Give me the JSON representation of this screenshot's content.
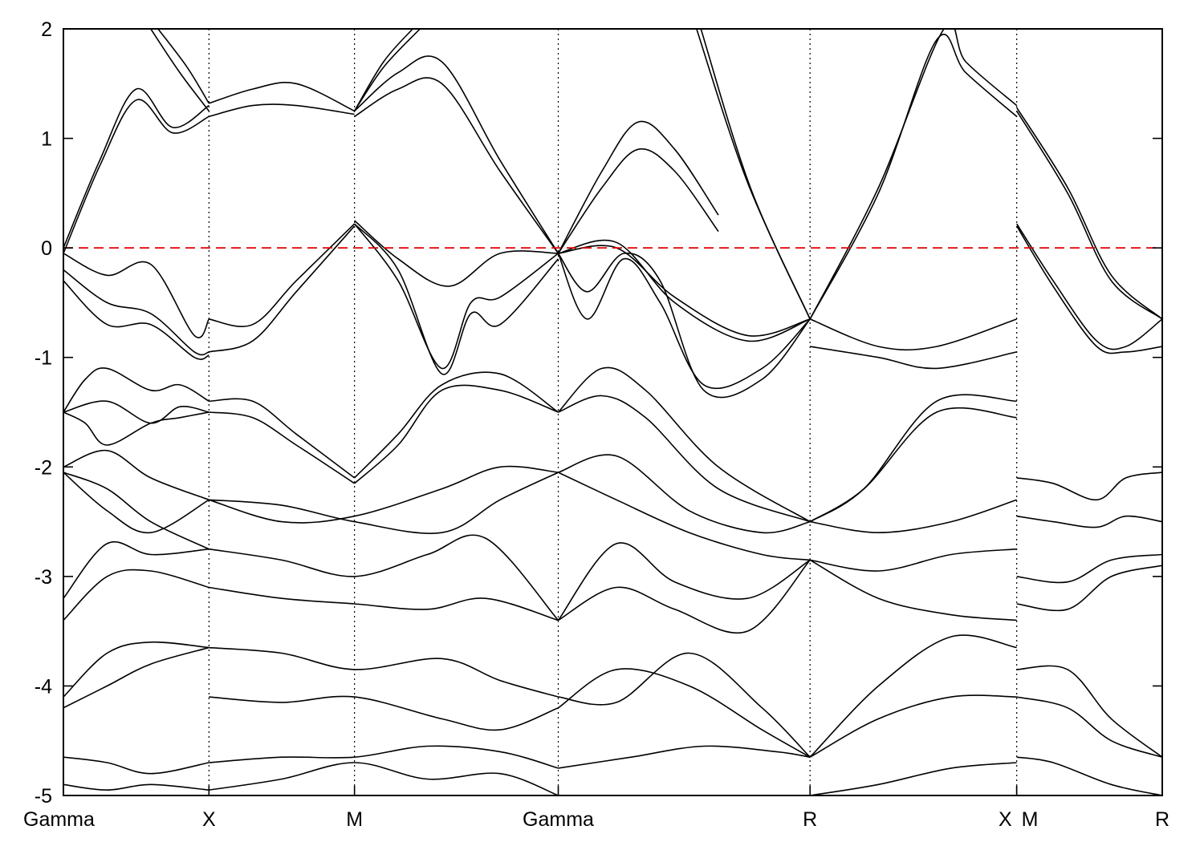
{
  "chart_data": {
    "type": "line",
    "title": "",
    "xlabel": "",
    "ylabel": "",
    "ylim": [
      -5,
      2
    ],
    "yticks": [
      -5,
      -4,
      -3,
      -2,
      -1,
      0,
      1,
      2
    ],
    "xlim": [
      0,
      7.55
    ],
    "kpoint_labels": [
      {
        "label": "Gamma",
        "x": 0
      },
      {
        "label": "X",
        "x": 1.0
      },
      {
        "label": "M",
        "x": 2.0
      },
      {
        "label": "Gamma",
        "x": 3.4
      },
      {
        "label": "R",
        "x": 5.13
      },
      {
        "label": "X",
        "x": 6.55
      },
      {
        "label": "M",
        "x": 6.55
      },
      {
        "label": "R",
        "x": 7.55
      }
    ],
    "dividers": [
      1.0,
      2.0,
      3.4,
      5.13,
      6.55
    ],
    "fermi_level": 0,
    "fermi_color": "#e00000",
    "band_color": "#000000",
    "grid": false,
    "series": [
      {
        "x": [
          0,
          0.25,
          0.5,
          0.75,
          1.0
        ],
        "y": [
          0.0,
          0.8,
          1.45,
          1.1,
          1.3
        ]
      },
      {
        "x": [
          0,
          0.25,
          0.5,
          0.75,
          1.0
        ],
        "y": [
          -0.05,
          0.75,
          1.35,
          1.05,
          1.2
        ]
      },
      {
        "x": [
          0.6,
          0.8,
          1.0
        ],
        "y": [
          2.0,
          1.6,
          1.25
        ]
      },
      {
        "x": [
          0.65,
          0.85,
          1.0
        ],
        "y": [
          2.0,
          1.65,
          1.32
        ]
      },
      {
        "x": [
          1.0,
          1.3,
          1.6,
          2.0
        ],
        "y": [
          1.32,
          1.45,
          1.5,
          1.25
        ]
      },
      {
        "x": [
          1.0,
          1.3,
          1.6,
          2.0
        ],
        "y": [
          1.2,
          1.3,
          1.3,
          1.22
        ]
      },
      {
        "x": [
          2.0,
          2.2,
          2.4
        ],
        "y": [
          1.25,
          1.7,
          2.0
        ]
      },
      {
        "x": [
          2.0,
          2.2,
          2.45
        ],
        "y": [
          1.25,
          1.65,
          2.0
        ]
      },
      {
        "x": [
          2.0,
          2.3,
          2.6,
          3.0,
          3.4
        ],
        "y": [
          1.25,
          1.6,
          1.7,
          0.8,
          -0.05
        ]
      },
      {
        "x": [
          2.0,
          2.3,
          2.6,
          3.0,
          3.4
        ],
        "y": [
          1.2,
          1.45,
          1.5,
          0.7,
          -0.05
        ]
      },
      {
        "x": [
          3.4,
          3.7,
          3.95,
          4.2,
          4.5
        ],
        "y": [
          -0.05,
          0.7,
          1.15,
          0.9,
          0.3
        ]
      },
      {
        "x": [
          3.4,
          3.7,
          3.95,
          4.2,
          4.5
        ],
        "y": [
          -0.05,
          0.55,
          0.9,
          0.7,
          0.15
        ]
      },
      {
        "x": [
          4.35,
          4.7,
          5.13
        ],
        "y": [
          2.0,
          0.6,
          -0.65
        ]
      },
      {
        "x": [
          4.38,
          4.72,
          5.13
        ],
        "y": [
          2.0,
          0.55,
          -0.65
        ]
      },
      {
        "x": [
          5.13,
          5.6,
          6.0,
          6.2,
          6.55
        ],
        "y": [
          -0.65,
          0.5,
          1.9,
          1.6,
          1.2
        ]
      },
      {
        "x": [
          5.13,
          5.6,
          6.05,
          6.2,
          6.55
        ],
        "y": [
          -0.65,
          0.55,
          2.0,
          1.7,
          1.3
        ]
      },
      {
        "x": [
          6.55,
          6.9,
          7.2,
          7.55
        ],
        "y": [
          1.25,
          0.5,
          -0.3,
          -0.65
        ]
      },
      {
        "x": [
          6.55,
          6.9,
          7.2,
          7.55
        ],
        "y": [
          1.28,
          0.55,
          -0.25,
          -0.65
        ]
      },
      {
        "x": [
          6.55,
          6.8,
          7.1,
          7.3,
          7.55
        ],
        "y": [
          0.22,
          -0.3,
          -0.85,
          -0.9,
          -0.65
        ]
      },
      {
        "x": [
          6.55,
          6.8,
          7.1,
          7.3,
          7.55
        ],
        "y": [
          0.2,
          -0.35,
          -0.9,
          -0.95,
          -0.9
        ]
      },
      {
        "x": [
          0,
          0.3,
          0.6,
          0.9,
          1.0
        ],
        "y": [
          -0.05,
          -0.25,
          -0.15,
          -0.8,
          -0.65
        ]
      },
      {
        "x": [
          0,
          0.3,
          0.6,
          0.9,
          1.0
        ],
        "y": [
          -0.2,
          -0.5,
          -0.6,
          -0.95,
          -0.95
        ]
      },
      {
        "x": [
          0,
          0.3,
          0.6,
          0.9,
          1.0
        ],
        "y": [
          -0.3,
          -0.7,
          -0.7,
          -1.0,
          -0.98
        ]
      },
      {
        "x": [
          1.0,
          1.3,
          1.6,
          2.0
        ],
        "y": [
          -0.65,
          -0.7,
          -0.3,
          0.22
        ]
      },
      {
        "x": [
          1.0,
          1.3,
          1.6,
          2.0
        ],
        "y": [
          -0.95,
          -0.85,
          -0.4,
          0.2
        ]
      },
      {
        "x": [
          2.0,
          2.3,
          2.6,
          2.8,
          3.0,
          3.4
        ],
        "y": [
          0.22,
          -0.3,
          -1.1,
          -0.5,
          -0.45,
          -0.05
        ]
      },
      {
        "x": [
          2.0,
          2.3,
          2.6,
          2.8,
          3.0,
          3.4
        ],
        "y": [
          0.22,
          -0.2,
          -1.15,
          -0.6,
          -0.7,
          -0.1
        ]
      },
      {
        "x": [
          2.0,
          2.3,
          2.65,
          3.0,
          3.4
        ],
        "y": [
          0.25,
          -0.1,
          -0.35,
          -0.05,
          -0.05
        ]
      },
      {
        "x": [
          3.4,
          3.6,
          3.85,
          4.1,
          4.4,
          4.8,
          5.13
        ],
        "y": [
          -0.05,
          -0.4,
          -0.05,
          -0.3,
          -1.3,
          -1.2,
          -0.65
        ]
      },
      {
        "x": [
          3.4,
          3.6,
          3.85,
          4.1,
          4.4,
          4.8,
          5.13
        ],
        "y": [
          -0.05,
          -0.65,
          -0.1,
          -0.5,
          -1.25,
          -1.1,
          -0.65
        ]
      },
      {
        "x": [
          3.4,
          3.8,
          4.2,
          4.7,
          5.13
        ],
        "y": [
          -0.05,
          0.05,
          -0.5,
          -0.85,
          -0.65
        ]
      },
      {
        "x": [
          3.4,
          3.8,
          4.2,
          4.7,
          5.13
        ],
        "y": [
          -0.05,
          0.0,
          -0.45,
          -0.8,
          -0.65
        ]
      },
      {
        "x": [
          5.13,
          5.6,
          6.0,
          6.55
        ],
        "y": [
          -0.65,
          -0.9,
          -0.9,
          -0.65
        ]
      },
      {
        "x": [
          5.13,
          5.6,
          6.0,
          6.55
        ],
        "y": [
          -0.9,
          -1.0,
          -1.1,
          -0.95
        ]
      },
      {
        "x": [
          0,
          0.15,
          0.3,
          0.6,
          0.8,
          1.0
        ],
        "y": [
          -1.5,
          -1.2,
          -1.1,
          -1.3,
          -1.25,
          -1.4
        ]
      },
      {
        "x": [
          0,
          0.15,
          0.3,
          0.6,
          0.8,
          1.0
        ],
        "y": [
          -1.5,
          -1.6,
          -1.8,
          -1.6,
          -1.55,
          -1.5
        ]
      },
      {
        "x": [
          0,
          0.3,
          0.6,
          0.8,
          1.0
        ],
        "y": [
          -1.5,
          -1.4,
          -1.6,
          -1.45,
          -1.5
        ]
      },
      {
        "x": [
          1.0,
          1.3,
          1.6,
          2.0
        ],
        "y": [
          -1.4,
          -1.4,
          -1.7,
          -2.1
        ]
      },
      {
        "x": [
          1.0,
          1.3,
          1.6,
          2.0
        ],
        "y": [
          -1.5,
          -1.55,
          -1.8,
          -2.15
        ]
      },
      {
        "x": [
          2.0,
          2.3,
          2.6,
          3.0,
          3.4
        ],
        "y": [
          -2.1,
          -1.7,
          -1.25,
          -1.15,
          -1.5
        ]
      },
      {
        "x": [
          2.0,
          2.3,
          2.6,
          3.0,
          3.4
        ],
        "y": [
          -2.15,
          -1.8,
          -1.3,
          -1.3,
          -1.5
        ]
      },
      {
        "x": [
          3.4,
          3.7,
          4.0,
          4.5,
          5.13
        ],
        "y": [
          -1.5,
          -1.1,
          -1.3,
          -2.0,
          -2.5
        ]
      },
      {
        "x": [
          3.4,
          3.7,
          4.0,
          4.5,
          5.13
        ],
        "y": [
          -1.5,
          -1.35,
          -1.55,
          -2.2,
          -2.5
        ]
      },
      {
        "x": [
          5.13,
          5.5,
          6.0,
          6.55
        ],
        "y": [
          -2.5,
          -2.2,
          -1.4,
          -1.4
        ]
      },
      {
        "x": [
          5.13,
          5.5,
          6.0,
          6.55
        ],
        "y": [
          -2.5,
          -2.2,
          -1.5,
          -1.55
        ]
      },
      {
        "x": [
          0,
          0.3,
          0.6,
          1.0
        ],
        "y": [
          -2.0,
          -1.85,
          -2.1,
          -2.3
        ]
      },
      {
        "x": [
          0,
          0.3,
          0.6,
          1.0
        ],
        "y": [
          -2.05,
          -2.2,
          -2.5,
          -2.75
        ]
      },
      {
        "x": [
          0,
          0.3,
          0.6,
          1.0
        ],
        "y": [
          -2.05,
          -2.4,
          -2.6,
          -2.3
        ]
      },
      {
        "x": [
          1.0,
          1.5,
          2.0,
          2.6,
          3.0,
          3.4
        ],
        "y": [
          -2.3,
          -2.5,
          -2.45,
          -2.2,
          -2.0,
          -2.05
        ]
      },
      {
        "x": [
          1.0,
          1.5,
          2.0,
          2.6,
          3.0,
          3.4
        ],
        "y": [
          -2.3,
          -2.35,
          -2.5,
          -2.6,
          -2.3,
          -2.05
        ]
      },
      {
        "x": [
          3.4,
          3.8,
          4.3,
          4.8,
          5.13
        ],
        "y": [
          -2.05,
          -1.9,
          -2.4,
          -2.6,
          -2.5
        ]
      },
      {
        "x": [
          3.4,
          3.8,
          4.3,
          4.8,
          5.13
        ],
        "y": [
          -2.05,
          -2.3,
          -2.6,
          -2.8,
          -2.85
        ]
      },
      {
        "x": [
          5.13,
          5.6,
          6.1,
          6.55
        ],
        "y": [
          -2.5,
          -2.6,
          -2.5,
          -2.3
        ]
      },
      {
        "x": [
          6.55,
          6.8,
          7.1,
          7.3,
          7.55
        ],
        "y": [
          -2.1,
          -2.15,
          -2.3,
          -2.1,
          -2.05
        ]
      },
      {
        "x": [
          6.55,
          6.8,
          7.1,
          7.3,
          7.55
        ],
        "y": [
          -2.45,
          -2.5,
          -2.55,
          -2.45,
          -2.5
        ]
      },
      {
        "x": [
          0,
          0.3,
          0.6,
          1.0
        ],
        "y": [
          -3.2,
          -2.7,
          -2.8,
          -2.75
        ]
      },
      {
        "x": [
          0,
          0.3,
          0.6,
          1.0
        ],
        "y": [
          -3.4,
          -3.0,
          -2.95,
          -3.1
        ]
      },
      {
        "x": [
          1.0,
          1.5,
          2.0,
          2.5,
          2.9,
          3.4
        ],
        "y": [
          -2.75,
          -2.85,
          -3.0,
          -2.8,
          -2.65,
          -3.4
        ]
      },
      {
        "x": [
          1.0,
          1.5,
          2.0,
          2.5,
          2.9,
          3.4
        ],
        "y": [
          -3.1,
          -3.2,
          -3.25,
          -3.3,
          -3.2,
          -3.4
        ]
      },
      {
        "x": [
          3.4,
          3.8,
          4.2,
          4.7,
          5.13
        ],
        "y": [
          -3.4,
          -2.7,
          -3.05,
          -3.2,
          -2.85
        ]
      },
      {
        "x": [
          3.4,
          3.8,
          4.2,
          4.7,
          5.13
        ],
        "y": [
          -3.4,
          -3.1,
          -3.3,
          -3.5,
          -2.85
        ]
      },
      {
        "x": [
          5.13,
          5.6,
          6.1,
          6.55
        ],
        "y": [
          -2.85,
          -2.95,
          -2.8,
          -2.75
        ]
      },
      {
        "x": [
          5.13,
          5.6,
          6.1,
          6.55
        ],
        "y": [
          -2.85,
          -3.2,
          -3.35,
          -3.4
        ]
      },
      {
        "x": [
          6.55,
          6.9,
          7.2,
          7.55
        ],
        "y": [
          -3.0,
          -3.05,
          -2.85,
          -2.8
        ]
      },
      {
        "x": [
          6.55,
          6.9,
          7.2,
          7.55
        ],
        "y": [
          -3.25,
          -3.3,
          -3.0,
          -2.9
        ]
      },
      {
        "x": [
          0,
          0.3,
          0.6,
          1.0
        ],
        "y": [
          -4.1,
          -3.7,
          -3.6,
          -3.65
        ]
      },
      {
        "x": [
          0,
          0.3,
          0.6,
          1.0
        ],
        "y": [
          -4.2,
          -4.0,
          -3.8,
          -3.65
        ]
      },
      {
        "x": [
          1.0,
          1.5,
          2.0,
          2.6,
          3.0,
          3.4
        ],
        "y": [
          -3.65,
          -3.7,
          -3.85,
          -3.75,
          -3.95,
          -4.1
        ]
      },
      {
        "x": [
          1.0,
          1.5,
          2.0,
          2.6,
          3.0,
          3.4
        ],
        "y": [
          -4.1,
          -4.15,
          -4.1,
          -4.3,
          -4.4,
          -4.2
        ]
      },
      {
        "x": [
          3.4,
          3.8,
          4.3,
          4.8,
          5.13
        ],
        "y": [
          -4.2,
          -3.85,
          -4.0,
          -4.4,
          -4.65
        ]
      },
      {
        "x": [
          3.4,
          3.8,
          4.3,
          4.8,
          5.13
        ],
        "y": [
          -4.1,
          -4.15,
          -3.7,
          -4.2,
          -4.65
        ]
      },
      {
        "x": [
          5.13,
          5.6,
          6.1,
          6.55
        ],
        "y": [
          -4.65,
          -4.0,
          -3.55,
          -3.65
        ]
      },
      {
        "x": [
          5.13,
          5.6,
          6.1,
          6.55
        ],
        "y": [
          -4.65,
          -4.3,
          -4.1,
          -4.1
        ]
      },
      {
        "x": [
          6.55,
          6.9,
          7.2,
          7.55
        ],
        "y": [
          -3.85,
          -3.85,
          -4.3,
          -4.65
        ]
      },
      {
        "x": [
          6.55,
          6.9,
          7.2,
          7.55
        ],
        "y": [
          -4.1,
          -4.2,
          -4.5,
          -4.65
        ]
      },
      {
        "x": [
          0,
          0.3,
          0.6,
          1.0
        ],
        "y": [
          -4.65,
          -4.7,
          -4.8,
          -4.7
        ]
      },
      {
        "x": [
          0,
          0.3,
          0.6,
          1.0
        ],
        "y": [
          -4.9,
          -4.95,
          -4.9,
          -4.95
        ]
      },
      {
        "x": [
          1.0,
          1.5,
          2.0,
          2.5,
          3.0,
          3.4
        ],
        "y": [
          -4.7,
          -4.65,
          -4.65,
          -4.55,
          -4.6,
          -4.75
        ]
      },
      {
        "x": [
          1.0,
          1.5,
          2.0,
          2.5,
          3.0,
          3.4
        ],
        "y": [
          -4.95,
          -4.85,
          -4.7,
          -4.85,
          -4.8,
          -5.0
        ]
      },
      {
        "x": [
          3.4,
          3.9,
          4.4,
          4.9,
          5.13
        ],
        "y": [
          -4.75,
          -4.65,
          -4.55,
          -4.6,
          -4.65
        ]
      },
      {
        "x": [
          5.13,
          5.6,
          6.1,
          6.55
        ],
        "y": [
          -5.0,
          -4.9,
          -4.75,
          -4.7
        ]
      },
      {
        "x": [
          6.55,
          6.8,
          7.2,
          7.55
        ],
        "y": [
          -4.65,
          -4.7,
          -4.9,
          -5.0
        ]
      }
    ]
  }
}
